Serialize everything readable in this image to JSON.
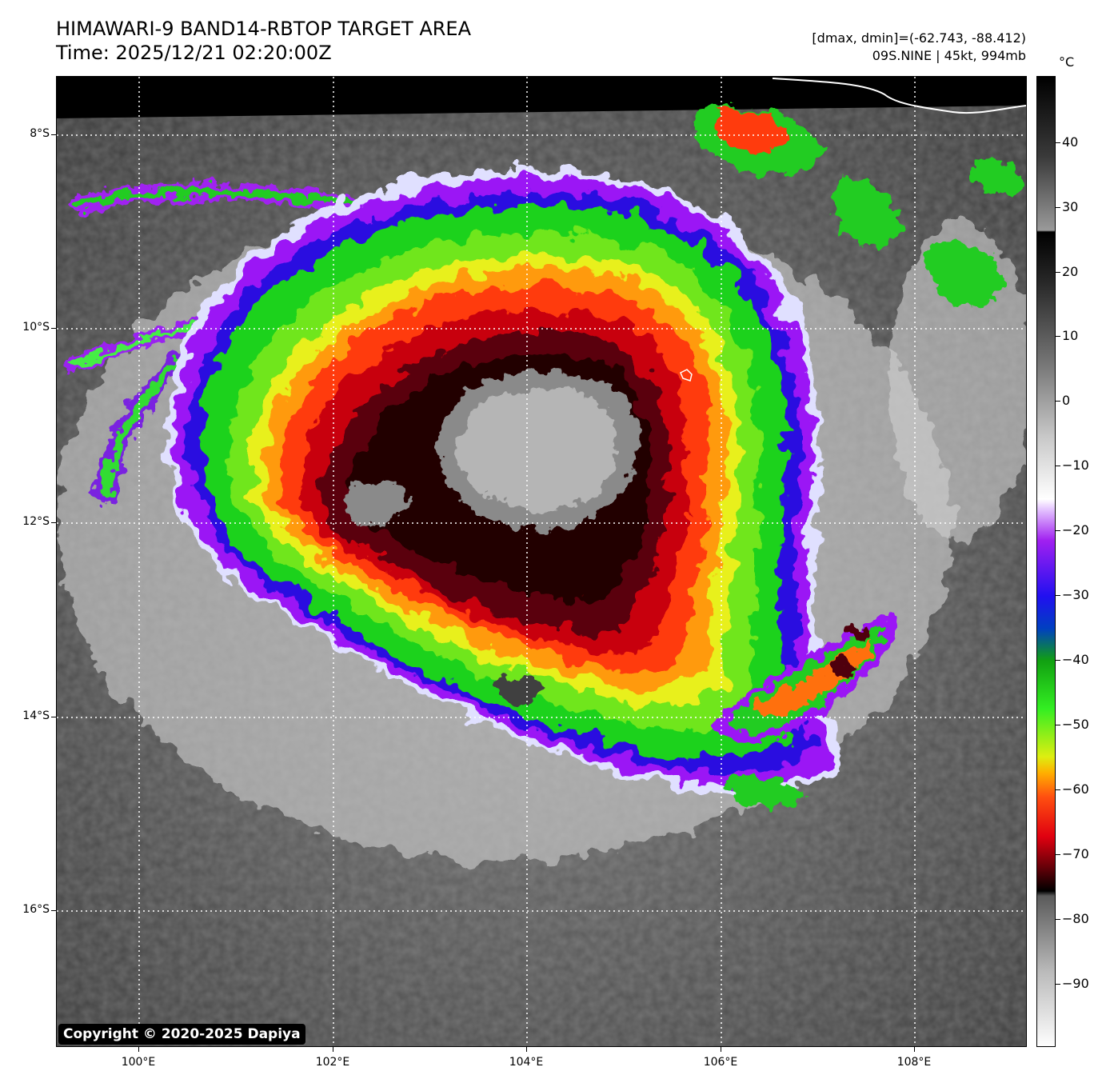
{
  "header": {
    "title": "HIMAWARI-9 BAND14-RBTOP TARGET AREA",
    "time": "Time: 2025/12/21 02:20:00Z",
    "range": "[dmax, dmin]=(-62.743, -88.412)",
    "storm": "09S.NINE | 45kt, 994mb"
  },
  "map": {
    "copyright": "Copyright © 2020-2025 Dapiya",
    "lat_labels": [
      "8°S",
      "10°S",
      "12°S",
      "14°S",
      "16°S"
    ],
    "lon_labels": [
      "100°E",
      "102°E",
      "104°E",
      "106°E",
      "108°E"
    ]
  },
  "colorbar": {
    "unit": "°C",
    "ticks": [
      "40",
      "30",
      "20",
      "10",
      "0",
      "−10",
      "−20",
      "−30",
      "−40",
      "−50",
      "−60",
      "−70",
      "−80",
      "−90"
    ]
  }
}
